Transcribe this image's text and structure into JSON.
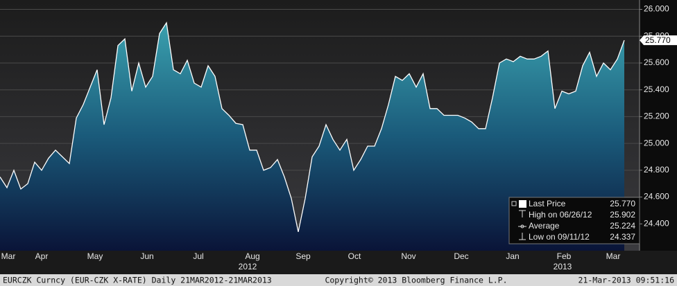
{
  "chart_data": {
    "type": "area",
    "series": [
      {
        "name": "Last Price",
        "color": "#ffffff",
        "values": [
          24.75,
          24.67,
          24.8,
          24.66,
          24.7,
          24.86,
          24.8,
          24.89,
          24.95,
          24.9,
          24.85,
          25.19,
          25.29,
          25.42,
          25.55,
          25.14,
          25.34,
          25.73,
          25.78,
          25.39,
          25.6,
          25.42,
          25.5,
          25.82,
          25.9,
          25.55,
          25.52,
          25.62,
          25.45,
          25.42,
          25.58,
          25.5,
          25.26,
          25.21,
          25.15,
          25.14,
          24.95,
          24.95,
          24.8,
          24.82,
          24.88,
          24.75,
          24.59,
          24.34,
          24.59,
          24.9,
          24.98,
          25.14,
          25.03,
          24.95,
          25.03,
          24.8,
          24.88,
          24.98,
          24.98,
          25.11,
          25.29,
          25.5,
          25.47,
          25.52,
          25.42,
          25.52,
          25.26,
          25.26,
          25.21,
          25.21,
          25.21,
          25.19,
          25.16,
          25.11,
          25.11,
          25.34,
          25.6,
          25.63,
          25.61,
          25.65,
          25.63,
          25.63,
          25.65,
          25.69,
          25.26,
          25.39,
          25.37,
          25.39,
          25.58,
          25.68,
          25.5,
          25.6,
          25.55,
          25.63,
          25.77
        ]
      }
    ],
    "xlim": [
      0,
      92.2
    ],
    "xticks": [
      {
        "value": 1.2,
        "label": "Mar"
      },
      {
        "value": 6,
        "label": "Apr"
      },
      {
        "value": 13.7,
        "label": "May"
      },
      {
        "value": 21.2,
        "label": "Jun"
      },
      {
        "value": 28.6,
        "label": "Jul"
      },
      {
        "value": 36.4,
        "label": "Aug"
      },
      {
        "value": 43.7,
        "label": "Sep"
      },
      {
        "value": 51.1,
        "label": "Oct"
      },
      {
        "value": 58.9,
        "label": "Nov"
      },
      {
        "value": 66.5,
        "label": "Dec"
      },
      {
        "value": 73.9,
        "label": "Jan"
      },
      {
        "value": 81.3,
        "label": "Feb"
      },
      {
        "value": 88.4,
        "label": "Mar"
      }
    ],
    "year_ticks": [
      {
        "value": 35.7,
        "label": "2012"
      },
      {
        "value": 81.1,
        "label": "2013"
      }
    ],
    "ylim": [
      24.2,
      26.07
    ],
    "yticks": [
      {
        "value": 24.4,
        "label": "24.400"
      },
      {
        "value": 24.6,
        "label": "24.600"
      },
      {
        "value": 24.8,
        "label": "24.800"
      },
      {
        "value": 25.0,
        "label": "25.000"
      },
      {
        "value": 25.2,
        "label": "25.200"
      },
      {
        "value": 25.4,
        "label": "25.400"
      },
      {
        "value": 25.6,
        "label": "25.600"
      },
      {
        "value": 25.8,
        "label": "25.800"
      },
      {
        "value": 26.0,
        "label": "26.000"
      }
    ],
    "grid": true,
    "legend": "bottom-right",
    "stats": {
      "labels": [
        "Last Price",
        "High on 06/26/12",
        "Average",
        "Low on 09/11/12"
      ],
      "values": [
        25.77,
        25.902,
        25.224,
        24.337
      ],
      "value_labels": [
        "25.770",
        "25.902",
        "25.224",
        "24.337"
      ]
    }
  },
  "footer": {
    "left": "EURCZK Curncy (EUR-CZK X-RATE)  Daily 21MAR2012-21MAR2013",
    "center": "Copyright© 2013 Bloomberg Finance L.P.",
    "right": "21-Mar-2013 09:51:16"
  }
}
